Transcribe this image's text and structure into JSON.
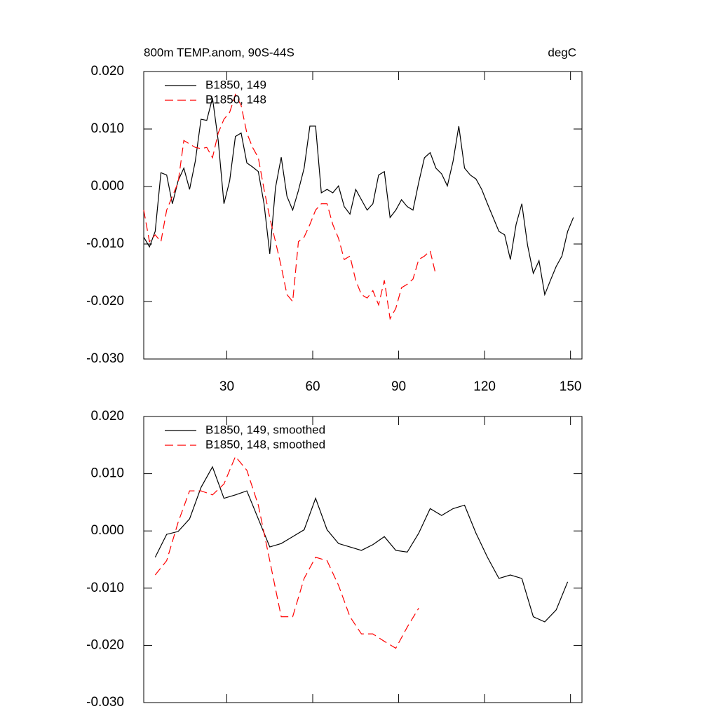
{
  "chart_data": [
    {
      "type": "line",
      "title": "800m TEMP.anom, 90S-44S",
      "units": "degC",
      "x": [
        1,
        3,
        5,
        7,
        9,
        11,
        13,
        15,
        17,
        19,
        21,
        23,
        25,
        27,
        29,
        31,
        33,
        35,
        37,
        39,
        41,
        43,
        45,
        47,
        49,
        51,
        53,
        55,
        57,
        59,
        61,
        63,
        65,
        67,
        69,
        71,
        73,
        75,
        77,
        79,
        81,
        83,
        85,
        87,
        89,
        91,
        93,
        95,
        97,
        99,
        101,
        103,
        105,
        107,
        109,
        111,
        113,
        115,
        117,
        119,
        121,
        123,
        125,
        127,
        129,
        131,
        133,
        135,
        137,
        139,
        141,
        143,
        145,
        147,
        149,
        151
      ],
      "series": [
        {
          "name": "B1850, 149",
          "color": "#000000",
          "dash": false,
          "values": [
            -0.0088,
            -0.0105,
            -0.0078,
            0.0024,
            0.002,
            -0.003,
            0.001,
            0.0032,
            -0.0005,
            0.0044,
            0.0117,
            0.0115,
            0.0154,
            0.008,
            -0.003,
            0.001,
            0.0087,
            0.0093,
            0.0041,
            0.0034,
            0.0026,
            -0.003,
            -0.0117,
            -0.0002,
            0.0051,
            -0.0017,
            -0.0041,
            -0.0007,
            0.0032,
            0.0105,
            0.0105,
            -0.0011,
            -0.0005,
            -0.0011,
            0.0001,
            -0.0035,
            -0.0048,
            -0.0005,
            -0.0023,
            -0.0041,
            -0.003,
            0.002,
            0.0026,
            -0.0054,
            -0.0041,
            -0.0023,
            -0.0035,
            -0.0041,
            0.0007,
            0.005,
            0.0059,
            0.0032,
            0.0022,
            0.0001,
            0.0044,
            0.0105,
            0.0032,
            0.002,
            0.0013,
            -0.0005,
            -0.003,
            -0.0054,
            -0.0078,
            -0.0084,
            -0.0127,
            -0.0066,
            -0.003,
            -0.0102,
            -0.0151,
            -0.0129,
            -0.0188,
            -0.0163,
            -0.0139,
            -0.0121,
            -0.0078,
            -0.0054
          ]
        },
        {
          "name": "B1850, 148",
          "color": "#ff0000",
          "dash": true,
          "values": [
            -0.0041,
            -0.0096,
            -0.0084,
            -0.0096,
            -0.0041,
            -0.0017,
            0.0007,
            0.008,
            0.0074,
            0.0068,
            0.0066,
            0.0068,
            0.005,
            0.0093,
            0.0117,
            0.0129,
            0.016,
            0.0141,
            0.0093,
            0.0068,
            0.005,
            -0.0005,
            -0.0054,
            -0.0096,
            -0.0139,
            -0.0188,
            -0.02,
            -0.0096,
            -0.0088,
            -0.0066,
            -0.0041,
            -0.003,
            -0.003,
            -0.0066,
            -0.009,
            -0.0127,
            -0.0121,
            -0.0163,
            -0.0188,
            -0.0194,
            -0.0181,
            -0.0206,
            -0.0163,
            -0.023,
            -0.0212,
            -0.0176,
            -0.017,
            -0.0161,
            -0.0127,
            -0.0121,
            -0.0112,
            -0.0154,
            null,
            null,
            null,
            null,
            null,
            null,
            null,
            null,
            null,
            null,
            null,
            null,
            null,
            null,
            null,
            null,
            null,
            null,
            null,
            null,
            null,
            null,
            null,
            null
          ]
        }
      ],
      "xlim": [
        1,
        154
      ],
      "xticks": [
        30,
        60,
        90,
        120,
        150
      ],
      "xtick_labels": true,
      "ylim": [
        -0.03,
        0.02
      ],
      "yticks": [
        {
          "value": -0.03,
          "label": "-0.030"
        },
        {
          "value": -0.02,
          "label": "-0.020"
        },
        {
          "value": -0.01,
          "label": "-0.010"
        },
        {
          "value": 0,
          "label": "0.000"
        },
        {
          "value": 0.01,
          "label": "0.010"
        },
        {
          "value": 0.02,
          "label": "0.020"
        }
      ],
      "legend": "upper left"
    },
    {
      "type": "line",
      "x": [
        5,
        9,
        13,
        17,
        21,
        25,
        29,
        33,
        37,
        41,
        45,
        49,
        53,
        57,
        61,
        65,
        69,
        73,
        77,
        81,
        85,
        89,
        93,
        97,
        101,
        105,
        109,
        113,
        117,
        121,
        125,
        129,
        133,
        137,
        141,
        145,
        149
      ],
      "series": [
        {
          "name": "B1850, 149, smoothed",
          "color": "#000000",
          "dash": false,
          "values": [
            -0.0046,
            -0.0006,
            -0.0001,
            0.0021,
            0.0076,
            0.0112,
            0.0057,
            0.0063,
            0.007,
            0.0021,
            -0.0028,
            -0.0022,
            -0.001,
            0.0002,
            0.0057,
            0.0002,
            -0.0022,
            -0.0028,
            -0.0034,
            -0.0024,
            -0.001,
            -0.0034,
            -0.0037,
            -0.0004,
            0.0039,
            0.0027,
            0.0039,
            0.0045,
            -0.0004,
            -0.0046,
            -0.0083,
            -0.0077,
            -0.0083,
            -0.015,
            -0.0159,
            -0.0138,
            -0.0089
          ]
        },
        {
          "name": "B1850, 148, smoothed",
          "color": "#ff0000",
          "dash": true,
          "values": [
            -0.0077,
            -0.0052,
            0.0015,
            0.007,
            0.007,
            0.0063,
            0.0082,
            0.013,
            0.0106,
            0.0045,
            -0.0052,
            -0.015,
            -0.015,
            -0.0083,
            -0.0046,
            -0.0052,
            -0.0095,
            -0.015,
            -0.018,
            -0.018,
            -0.0193,
            -0.0205,
            -0.0168,
            -0.0135,
            null,
            null,
            null,
            null,
            null,
            null,
            null,
            null,
            null,
            null,
            null,
            null,
            null
          ]
        }
      ],
      "xlim": [
        1,
        154
      ],
      "xticks": [
        30,
        60,
        90,
        120,
        150
      ],
      "xtick_labels": false,
      "ylim": [
        -0.03,
        0.02
      ],
      "yticks": [
        {
          "value": -0.03,
          "label": "-0.030"
        },
        {
          "value": -0.02,
          "label": "-0.020"
        },
        {
          "value": -0.01,
          "label": "-0.010"
        },
        {
          "value": 0,
          "label": "0.000"
        },
        {
          "value": 0.01,
          "label": "0.010"
        },
        {
          "value": 0.02,
          "label": "0.020"
        }
      ],
      "legend": "upper left"
    }
  ]
}
